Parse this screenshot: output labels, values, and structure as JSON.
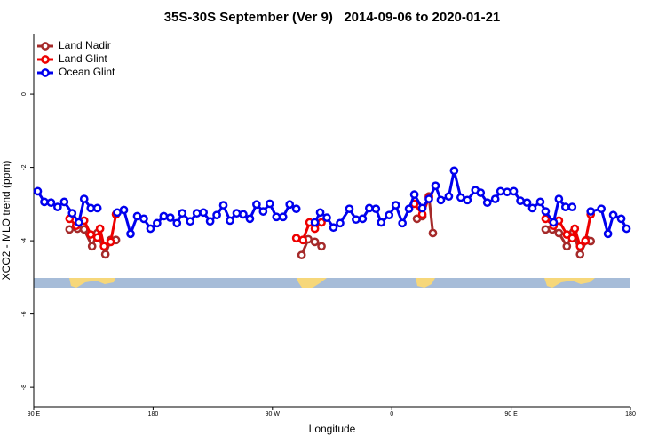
{
  "chart_data": {
    "type": "line",
    "title": "35S-30S September (Ver 9)   2014-09-06 to 2020-01-21",
    "x_label": "Longitude",
    "y_label": "XCO2 - MLO trend (ppm)",
    "xlim": [
      90,
      540
    ],
    "xticks": [
      {
        "value": 90,
        "label": "90 E"
      },
      180,
      {
        "value": 270,
        "label": "90 W"
      },
      {
        "value": 360,
        "label": "0"
      },
      {
        "value": 450,
        "label": "90 E"
      },
      {
        "value": 540,
        "label": "180"
      }
    ],
    "ylim": [
      -8.53,
      1.65
    ],
    "yticks": [
      0,
      -2,
      -4,
      -6,
      -8
    ],
    "legend": "top-left",
    "series": [
      {
        "name": "Land Nadir",
        "color": "#a52a2a",
        "x": [
          117,
          123,
          128,
          134,
          138,
          144,
          148,
          152,
          200,
          292,
          297,
          302,
          307,
          340,
          379,
          383,
          388,
          391,
          430,
          476,
          481,
          486,
          492,
          497,
          502,
          507,
          510
        ],
        "values": [
          -3.69,
          -3.67,
          -3.69,
          -4.15,
          -3.79,
          -4.37,
          -3.98,
          -3.98,
          null,
          -4.39,
          -3.96,
          -4.03,
          -4.15,
          null,
          -3.4,
          -3.33,
          -2.79,
          -3.79,
          null,
          -3.69,
          -3.69,
          -3.79,
          -4.15,
          -3.76,
          -4.37,
          -3.98,
          -4.01
        ]
      },
      {
        "name": "Land Glint",
        "color": "#ee0000",
        "x": [
          117,
          122,
          128,
          133,
          138,
          140,
          143,
          148,
          152,
          200,
          288,
          293,
          298,
          302,
          307,
          340,
          377,
          383,
          388,
          430,
          476,
          482,
          486,
          492,
          496,
          498,
          502,
          506,
          510
        ],
        "values": [
          -3.4,
          -3.59,
          -3.45,
          -3.83,
          -3.91,
          -3.67,
          -4.15,
          -4.03,
          -3.28,
          null,
          -3.93,
          -3.98,
          -3.5,
          -3.67,
          -3.5,
          null,
          -2.99,
          -3.28,
          -2.82,
          null,
          -3.4,
          -3.59,
          -3.45,
          -3.83,
          -3.93,
          -3.67,
          -4.15,
          -4.0,
          -3.28
        ]
      },
      {
        "name": "Ocean Glint",
        "color": "#0000ee",
        "x": [
          93,
          98,
          103,
          108,
          113,
          119,
          124,
          128,
          133,
          138,
          145,
          153,
          158,
          163,
          168,
          173,
          178,
          183,
          188,
          193,
          198,
          202,
          208,
          213,
          218,
          223,
          228,
          233,
          238,
          243,
          248,
          253,
          258,
          263,
          268,
          273,
          278,
          283,
          288,
          295,
          302,
          306,
          311,
          316,
          321,
          328,
          333,
          338,
          343,
          348,
          352,
          358,
          363,
          368,
          373,
          377,
          383,
          388,
          393,
          397,
          403,
          407,
          412,
          417,
          423,
          427,
          432,
          438,
          442,
          447,
          452,
          457,
          462,
          466,
          472,
          476,
          482,
          486,
          491,
          496,
          503,
          510,
          518,
          523,
          527,
          533,
          537
        ],
        "values": [
          -2.65,
          -2.94,
          -2.96,
          -3.08,
          -2.94,
          -3.25,
          -3.5,
          -2.86,
          -3.11,
          -3.11,
          null,
          -3.23,
          -3.16,
          -3.81,
          -3.33,
          -3.4,
          -3.67,
          -3.52,
          -3.33,
          -3.37,
          -3.52,
          -3.25,
          -3.47,
          -3.25,
          -3.23,
          -3.47,
          -3.3,
          -3.03,
          -3.45,
          -3.25,
          -3.28,
          -3.4,
          -3.01,
          -3.2,
          -2.99,
          -3.35,
          -3.35,
          -3.01,
          -3.13,
          null,
          -3.5,
          -3.23,
          -3.37,
          -3.64,
          -3.52,
          -3.13,
          -3.42,
          -3.4,
          -3.11,
          -3.13,
          -3.5,
          -3.3,
          -3.03,
          -3.52,
          -3.13,
          -2.74,
          -3.11,
          -2.86,
          -2.5,
          -2.89,
          -2.79,
          -2.09,
          -2.82,
          -2.89,
          -2.62,
          -2.69,
          -2.96,
          -2.86,
          -2.65,
          -2.67,
          -2.65,
          -2.91,
          -2.96,
          -3.11,
          -2.94,
          -3.2,
          -3.5,
          -2.86,
          -3.08,
          -3.08,
          null,
          -3.2,
          -3.13,
          -3.81,
          -3.3,
          -3.4,
          -3.67
        ]
      }
    ]
  }
}
